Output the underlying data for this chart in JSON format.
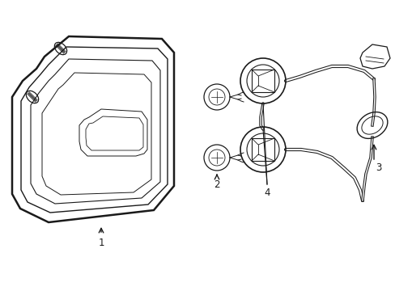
{
  "background_color": "#ffffff",
  "line_color": "#1a1a1a",
  "line_width": 1.0,
  "label_fontsize": 8.5,
  "figsize": [
    4.89,
    3.6
  ],
  "dpi": 100
}
